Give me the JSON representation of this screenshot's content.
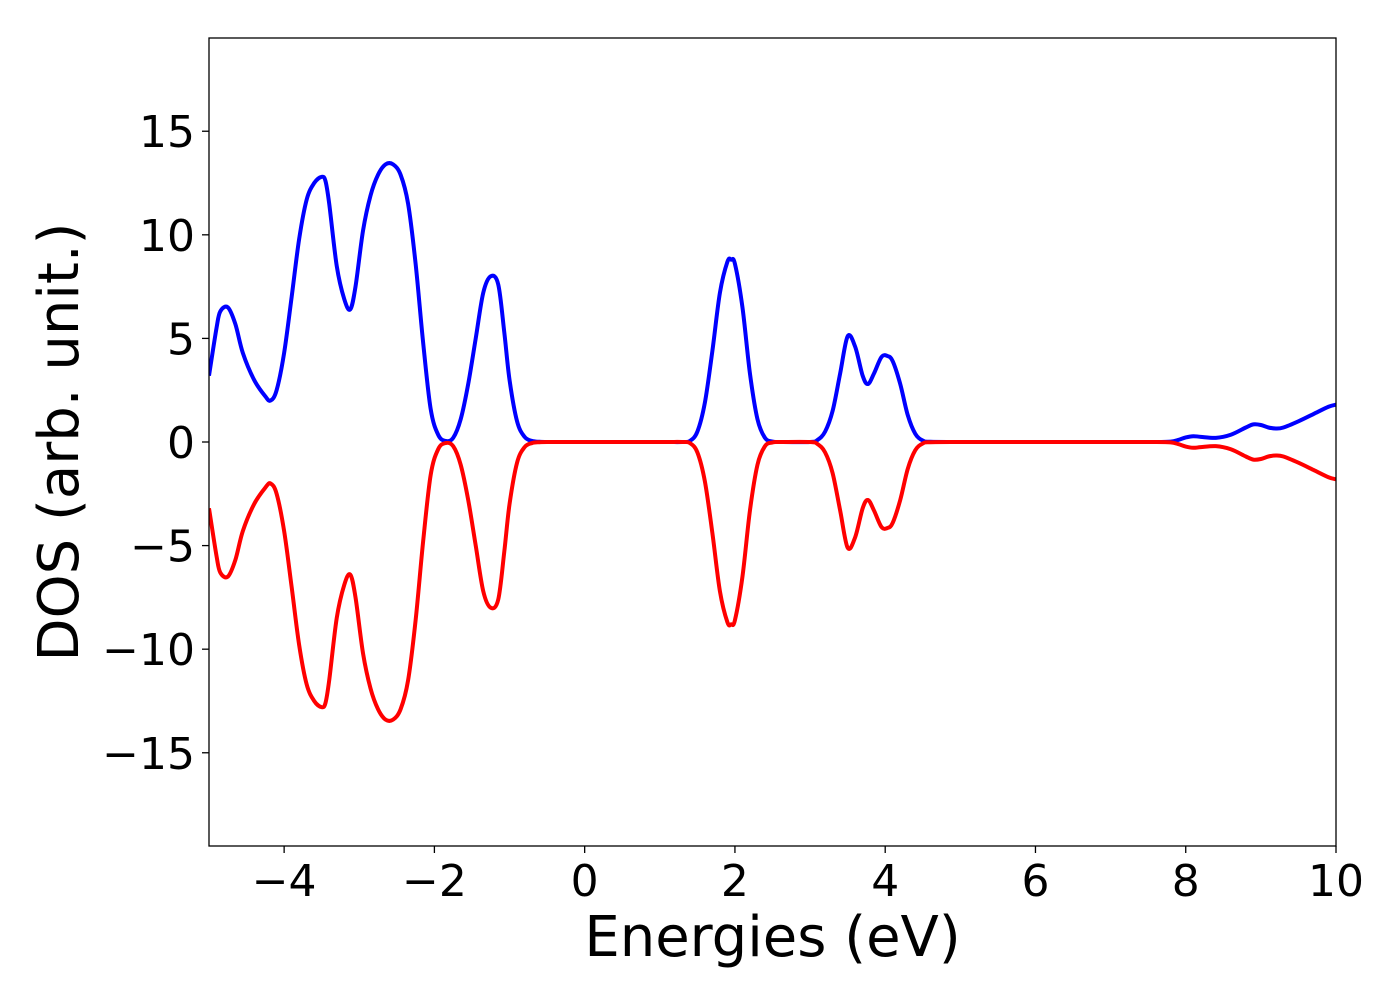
{
  "chart_data": {
    "type": "line",
    "title": "",
    "xlabel": "Energies (eV)",
    "ylabel": "DOS (arb. unit.)",
    "xlim": [
      -5,
      10
    ],
    "ylim": [
      -19.5,
      19.5
    ],
    "x_ticks": [
      -4,
      -2,
      0,
      2,
      4,
      6,
      8,
      10
    ],
    "x_tick_labels": [
      "−4",
      "−2",
      "0",
      "2",
      "4",
      "6",
      "8",
      "10"
    ],
    "y_ticks": [
      -15,
      -10,
      -5,
      0,
      5,
      10,
      15
    ],
    "y_tick_labels": [
      "−15",
      "−10",
      "−5",
      "0",
      "5",
      "10",
      "15"
    ],
    "grid": false,
    "legend": "none",
    "series": [
      {
        "color": "#0000ff",
        "x": [
          -5.0,
          -4.9,
          -4.85,
          -4.75,
          -4.65,
          -4.55,
          -4.4,
          -4.25,
          -4.18,
          -4.1,
          -4.0,
          -3.9,
          -3.8,
          -3.7,
          -3.6,
          -3.5,
          -3.45,
          -3.4,
          -3.3,
          -3.2,
          -3.12,
          -3.05,
          -2.95,
          -2.85,
          -2.75,
          -2.65,
          -2.55,
          -2.45,
          -2.35,
          -2.25,
          -2.15,
          -2.05,
          -1.95,
          -1.85,
          -1.75,
          -1.65,
          -1.55,
          -1.45,
          -1.35,
          -1.25,
          -1.15,
          -1.07,
          -1.0,
          -0.9,
          -0.8,
          -0.7,
          -0.6,
          -0.5,
          0.0,
          1.0,
          1.3,
          1.4,
          1.5,
          1.6,
          1.7,
          1.8,
          1.9,
          1.95,
          2.0,
          2.1,
          2.2,
          2.3,
          2.4,
          2.5,
          2.6,
          3.0,
          3.1,
          3.2,
          3.3,
          3.4,
          3.5,
          3.6,
          3.7,
          3.77,
          3.85,
          3.95,
          4.03,
          4.1,
          4.2,
          4.3,
          4.4,
          4.5,
          4.6,
          5.0,
          6.0,
          7.0,
          7.6,
          7.8,
          7.9,
          8.0,
          8.1,
          8.2,
          8.4,
          8.6,
          8.8,
          8.9,
          9.0,
          9.1,
          9.2,
          9.3,
          9.5,
          9.7,
          9.9,
          10.0
        ],
        "y": [
          3.2,
          5.5,
          6.3,
          6.5,
          5.7,
          4.3,
          3.0,
          2.2,
          2.0,
          2.5,
          4.3,
          7.0,
          9.8,
          11.7,
          12.5,
          12.8,
          12.6,
          11.5,
          8.5,
          6.9,
          6.4,
          7.5,
          10.2,
          11.9,
          12.9,
          13.4,
          13.4,
          12.9,
          11.5,
          8.6,
          4.8,
          1.6,
          0.35,
          0.05,
          0.2,
          1.1,
          2.8,
          5.0,
          7.2,
          8.0,
          7.6,
          5.3,
          3.0,
          1.0,
          0.25,
          0.05,
          0.01,
          0.0,
          0.0,
          0.0,
          0.0,
          0.05,
          0.5,
          1.9,
          4.4,
          7.2,
          8.7,
          8.8,
          8.6,
          6.5,
          3.3,
          1.1,
          0.2,
          0.02,
          0.0,
          0.0,
          0.1,
          0.5,
          1.5,
          3.3,
          5.1,
          4.6,
          3.2,
          2.8,
          3.3,
          4.1,
          4.15,
          3.9,
          2.8,
          1.3,
          0.4,
          0.07,
          0.01,
          0.0,
          0.0,
          0.0,
          0.0,
          0.02,
          0.1,
          0.22,
          0.28,
          0.25,
          0.2,
          0.35,
          0.7,
          0.85,
          0.82,
          0.7,
          0.65,
          0.7,
          1.0,
          1.35,
          1.7,
          1.8
        ]
      },
      {
        "color": "#ff0000",
        "x": [
          -5.0,
          -4.9,
          -4.85,
          -4.75,
          -4.65,
          -4.55,
          -4.4,
          -4.25,
          -4.18,
          -4.1,
          -4.0,
          -3.9,
          -3.8,
          -3.7,
          -3.6,
          -3.5,
          -3.45,
          -3.4,
          -3.3,
          -3.2,
          -3.12,
          -3.05,
          -2.95,
          -2.85,
          -2.75,
          -2.65,
          -2.55,
          -2.45,
          -2.35,
          -2.25,
          -2.15,
          -2.05,
          -1.95,
          -1.85,
          -1.75,
          -1.65,
          -1.55,
          -1.45,
          -1.35,
          -1.25,
          -1.15,
          -1.07,
          -1.0,
          -0.9,
          -0.8,
          -0.7,
          -0.6,
          -0.5,
          0.0,
          1.0,
          1.3,
          1.4,
          1.5,
          1.6,
          1.7,
          1.8,
          1.9,
          1.95,
          2.0,
          2.1,
          2.2,
          2.3,
          2.4,
          2.5,
          2.6,
          3.0,
          3.1,
          3.2,
          3.3,
          3.4,
          3.5,
          3.6,
          3.7,
          3.77,
          3.85,
          3.95,
          4.03,
          4.1,
          4.2,
          4.3,
          4.4,
          4.5,
          4.6,
          5.0,
          6.0,
          7.0,
          7.6,
          7.8,
          7.9,
          8.0,
          8.1,
          8.2,
          8.4,
          8.6,
          8.8,
          8.9,
          9.0,
          9.1,
          9.2,
          9.3,
          9.5,
          9.7,
          9.9,
          10.0
        ],
        "y": [
          -3.2,
          -5.5,
          -6.3,
          -6.5,
          -5.7,
          -4.3,
          -3.0,
          -2.2,
          -2.0,
          -2.5,
          -4.3,
          -7.0,
          -9.8,
          -11.7,
          -12.5,
          -12.8,
          -12.6,
          -11.5,
          -8.5,
          -6.9,
          -6.4,
          -7.5,
          -10.2,
          -11.9,
          -12.9,
          -13.4,
          -13.4,
          -12.9,
          -11.5,
          -8.6,
          -4.8,
          -1.6,
          -0.35,
          -0.05,
          -0.2,
          -1.1,
          -2.8,
          -5.0,
          -7.2,
          -8.0,
          -7.6,
          -5.3,
          -3.0,
          -1.0,
          -0.25,
          -0.05,
          -0.01,
          0.0,
          0.0,
          0.0,
          0.0,
          -0.05,
          -0.5,
          -1.9,
          -4.4,
          -7.2,
          -8.7,
          -8.8,
          -8.6,
          -6.5,
          -3.3,
          -1.1,
          -0.2,
          -0.02,
          0.0,
          0.0,
          -0.1,
          -0.5,
          -1.5,
          -3.3,
          -5.1,
          -4.6,
          -3.2,
          -2.8,
          -3.3,
          -4.1,
          -4.15,
          -3.9,
          -2.8,
          -1.3,
          -0.4,
          -0.07,
          -0.01,
          0.0,
          0.0,
          0.0,
          0.0,
          -0.02,
          -0.1,
          -0.22,
          -0.28,
          -0.25,
          -0.2,
          -0.35,
          -0.7,
          -0.85,
          -0.82,
          -0.7,
          -0.65,
          -0.7,
          -1.0,
          -1.35,
          -1.7,
          -1.8
        ]
      }
    ]
  }
}
